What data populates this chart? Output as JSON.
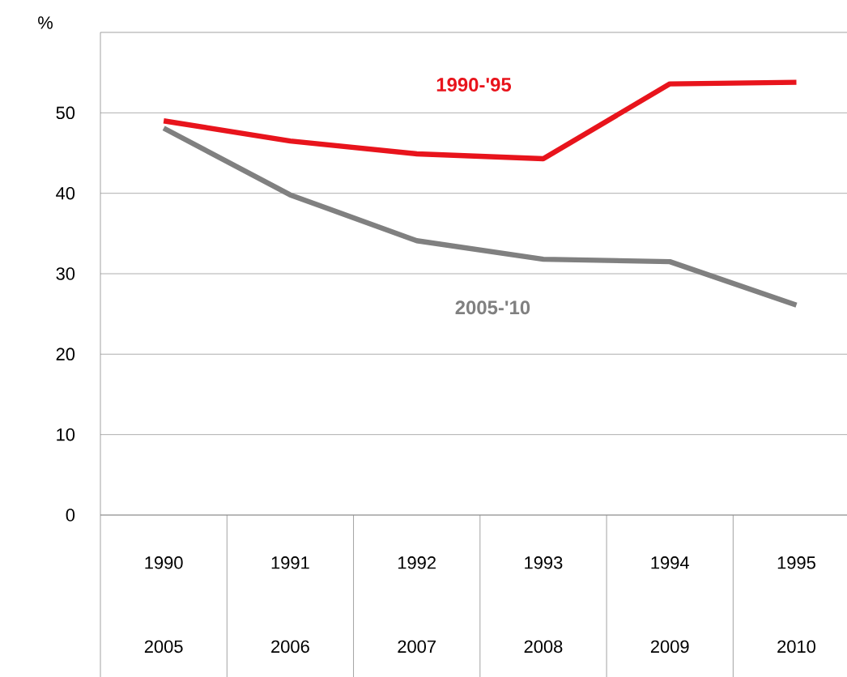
{
  "chart_data": {
    "type": "line",
    "ylabel": "%",
    "categories": [
      "1990 2005",
      "1991 2006",
      "1992 2007",
      "1993 2008",
      "1994 2009",
      "1995 2010"
    ],
    "series": [
      {
        "name": "1990-'95",
        "color": "#e8141c",
        "values": [
          49,
          46.5,
          44.9,
          44.3,
          53.6,
          53.8
        ]
      },
      {
        "name": "2005-'10",
        "color": "#808080",
        "values": [
          48.1,
          39.8,
          34.1,
          31.8,
          31.5,
          26.1
        ]
      }
    ],
    "ylim": [
      0,
      60
    ],
    "yticks": [
      0,
      10,
      20,
      30,
      40,
      50
    ],
    "grid": "y",
    "marker": "none",
    "line_style": "solid"
  }
}
